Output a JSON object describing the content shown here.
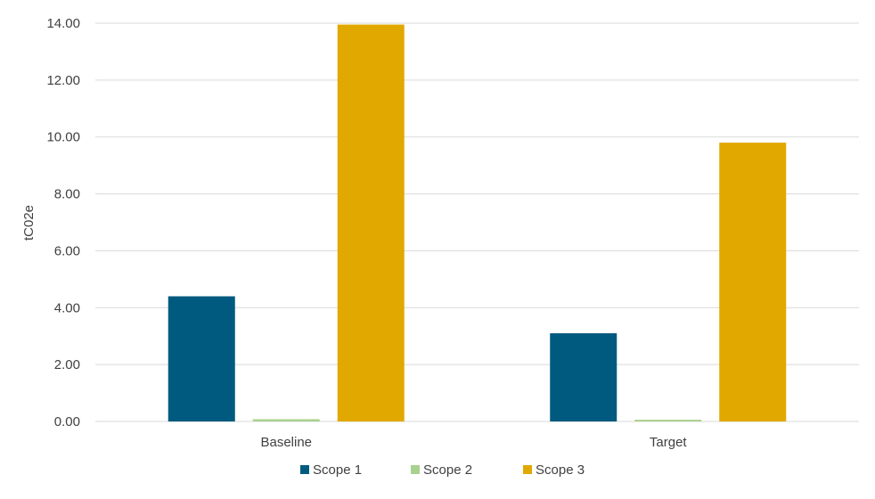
{
  "chart_data": {
    "type": "bar",
    "title": "",
    "xlabel": "",
    "ylabel": "tC02e",
    "categories": [
      "Baseline",
      "Target"
    ],
    "series": [
      {
        "name": "Scope 1",
        "color": "#005a7f",
        "values": [
          4.4,
          3.1
        ]
      },
      {
        "name": "Scope 2",
        "color": "#a9d18e",
        "values": [
          0.08,
          0.06
        ]
      },
      {
        "name": "Scope 3",
        "color": "#e1a800",
        "values": [
          13.95,
          9.8
        ]
      }
    ],
    "ylim": [
      0,
      14
    ],
    "yticks": [
      0,
      2,
      4,
      6,
      8,
      10,
      12,
      14
    ],
    "ytick_labels": [
      "0.00",
      "2.00",
      "4.00",
      "6.00",
      "8.00",
      "10.00",
      "12.00",
      "14.00"
    ],
    "grid": true,
    "gridline_color": "#d9d9d9",
    "legend_position": "bottom"
  }
}
